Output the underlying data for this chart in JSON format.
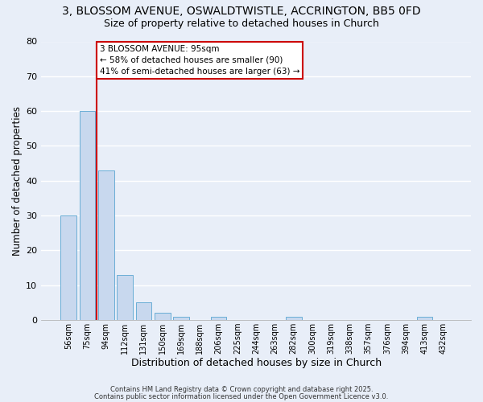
{
  "title1": "3, BLOSSOM AVENUE, OSWALDTWISTLE, ACCRINGTON, BB5 0FD",
  "title2": "Size of property relative to detached houses in Church",
  "xlabel": "Distribution of detached houses by size in Church",
  "ylabel": "Number of detached properties",
  "bar_labels": [
    "56sqm",
    "75sqm",
    "94sqm",
    "112sqm",
    "131sqm",
    "150sqm",
    "169sqm",
    "188sqm",
    "206sqm",
    "225sqm",
    "244sqm",
    "263sqm",
    "282sqm",
    "300sqm",
    "319sqm",
    "338sqm",
    "357sqm",
    "376sqm",
    "394sqm",
    "413sqm",
    "432sqm"
  ],
  "bar_values": [
    30,
    60,
    43,
    13,
    5,
    2,
    1,
    0,
    1,
    0,
    0,
    0,
    1,
    0,
    0,
    0,
    0,
    0,
    0,
    1,
    0
  ],
  "bar_color": "#c8d8ee",
  "bar_edge_color": "#6aaed6",
  "vline_color": "#cc0000",
  "annotation_lines": [
    "3 BLOSSOM AVENUE: 95sqm",
    "← 58% of detached houses are smaller (90)",
    "41% of semi-detached houses are larger (63) →"
  ],
  "annotation_box_color": "#ffffff",
  "annotation_box_edge": "#cc0000",
  "ylim": [
    0,
    80
  ],
  "yticks": [
    0,
    10,
    20,
    30,
    40,
    50,
    60,
    70,
    80
  ],
  "footer1": "Contains HM Land Registry data © Crown copyright and database right 2025.",
  "footer2": "Contains public sector information licensed under the Open Government Licence v3.0.",
  "bg_color": "#e8eef8",
  "grid_color": "#ffffff",
  "title1_fontsize": 10,
  "title2_fontsize": 9
}
